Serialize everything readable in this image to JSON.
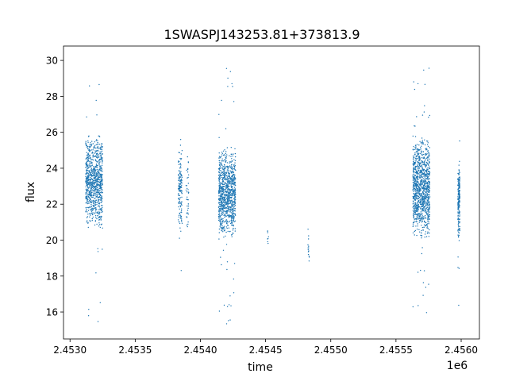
{
  "chart_data": {
    "type": "scatter",
    "title": "1SWASPJ143253.81+373813.9",
    "xlabel": "time",
    "ylabel": "flux",
    "x_offset_label": "1e6",
    "xlim": [
      2452950,
      2456140
    ],
    "ylim": [
      14.5,
      30.8
    ],
    "xticks": [
      2453000,
      2453500,
      2454000,
      2454500,
      2455000,
      2455500,
      2456000
    ],
    "xtick_labels": [
      "2.4530",
      "2.4535",
      "2.4540",
      "2.4545",
      "2.4550",
      "2.4555",
      "2.4560"
    ],
    "yticks": [
      16,
      18,
      20,
      22,
      24,
      26,
      28,
      30
    ],
    "ytick_labels": [
      "16",
      "18",
      "20",
      "22",
      "24",
      "26",
      "28",
      "30"
    ],
    "grid": false,
    "marker_color": "#1f77b4",
    "clusters": [
      {
        "x_range": [
          2453120,
          2453250
        ],
        "core_flux": [
          20.5,
          26.0
        ],
        "outlier_flux": [
          15.3,
          29.0
        ],
        "n": 900
      },
      {
        "x_range": [
          2453830,
          2453860
        ],
        "core_flux": [
          20.5,
          25.5
        ],
        "outlier_flux": [
          18.0,
          26.0
        ],
        "n": 150
      },
      {
        "x_range": [
          2453890,
          2453910
        ],
        "core_flux": [
          20.2,
          25.4
        ],
        "outlier_flux": [
          20.0,
          25.5
        ],
        "n": 40
      },
      {
        "x_range": [
          2454140,
          2454270
        ],
        "core_flux": [
          20.0,
          25.2
        ],
        "outlier_flux": [
          15.3,
          30.0
        ],
        "n": 1000
      },
      {
        "x_range": [
          2454515,
          2454525
        ],
        "core_flux": [
          19.4,
          20.7
        ],
        "outlier_flux": [
          19.4,
          20.7
        ],
        "n": 8
      },
      {
        "x_range": [
          2454825,
          2454835
        ],
        "core_flux": [
          18.2,
          20.8
        ],
        "outlier_flux": [
          18.2,
          20.8
        ],
        "n": 14
      },
      {
        "x_range": [
          2455630,
          2455760
        ],
        "core_flux": [
          20.0,
          25.8
        ],
        "outlier_flux": [
          15.3,
          29.6
        ],
        "n": 1100
      },
      {
        "x_range": [
          2455975,
          2455990
        ],
        "core_flux": [
          19.8,
          24.5
        ],
        "outlier_flux": [
          16.0,
          28.0
        ],
        "n": 200
      }
    ]
  }
}
